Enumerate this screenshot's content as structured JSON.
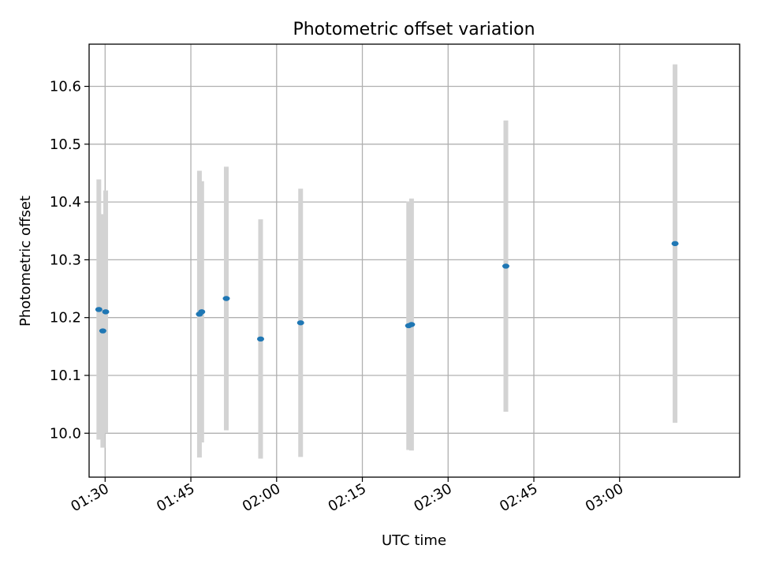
{
  "chart_data": {
    "type": "scatter",
    "title": "Photometric offset variation",
    "xlabel": "UTC time",
    "ylabel": "Photometric offset",
    "xlim": [
      "01:27:12",
      "03:21:00"
    ],
    "ylim": [
      9.924,
      10.673
    ],
    "grid": true,
    "x_ticks": [
      "01:30",
      "01:45",
      "02:00",
      "02:15",
      "02:30",
      "02:45",
      "03:00"
    ],
    "y_ticks": [
      "10.0",
      "10.1",
      "10.2",
      "10.3",
      "10.4",
      "10.5",
      "10.6"
    ],
    "error_bar_color": "#d3d3d3",
    "point_color": "#1f77b4",
    "series": [
      {
        "points": [
          {
            "x": "01:28:54",
            "y": 10.214,
            "yerr": 0.225
          },
          {
            "x": "01:29:36",
            "y": 10.177,
            "yerr": 0.202
          },
          {
            "x": "01:30:06",
            "y": 10.21,
            "yerr": 0.21
          },
          {
            "x": "01:46:30",
            "y": 10.206,
            "yerr": 0.248
          },
          {
            "x": "01:46:54",
            "y": 10.21,
            "yerr": 0.226
          },
          {
            "x": "01:51:12",
            "y": 10.233,
            "yerr": 0.228
          },
          {
            "x": "01:57:12",
            "y": 10.163,
            "yerr": 0.207
          },
          {
            "x": "02:04:12",
            "y": 10.191,
            "yerr": 0.232
          },
          {
            "x": "02:23:06",
            "y": 10.186,
            "yerr": 0.215
          },
          {
            "x": "02:23:36",
            "y": 10.188,
            "yerr": 0.218
          },
          {
            "x": "02:40:06",
            "y": 10.289,
            "yerr": 0.252
          },
          {
            "x": "03:09:42",
            "y": 10.328,
            "yerr": 0.31
          }
        ]
      }
    ]
  }
}
